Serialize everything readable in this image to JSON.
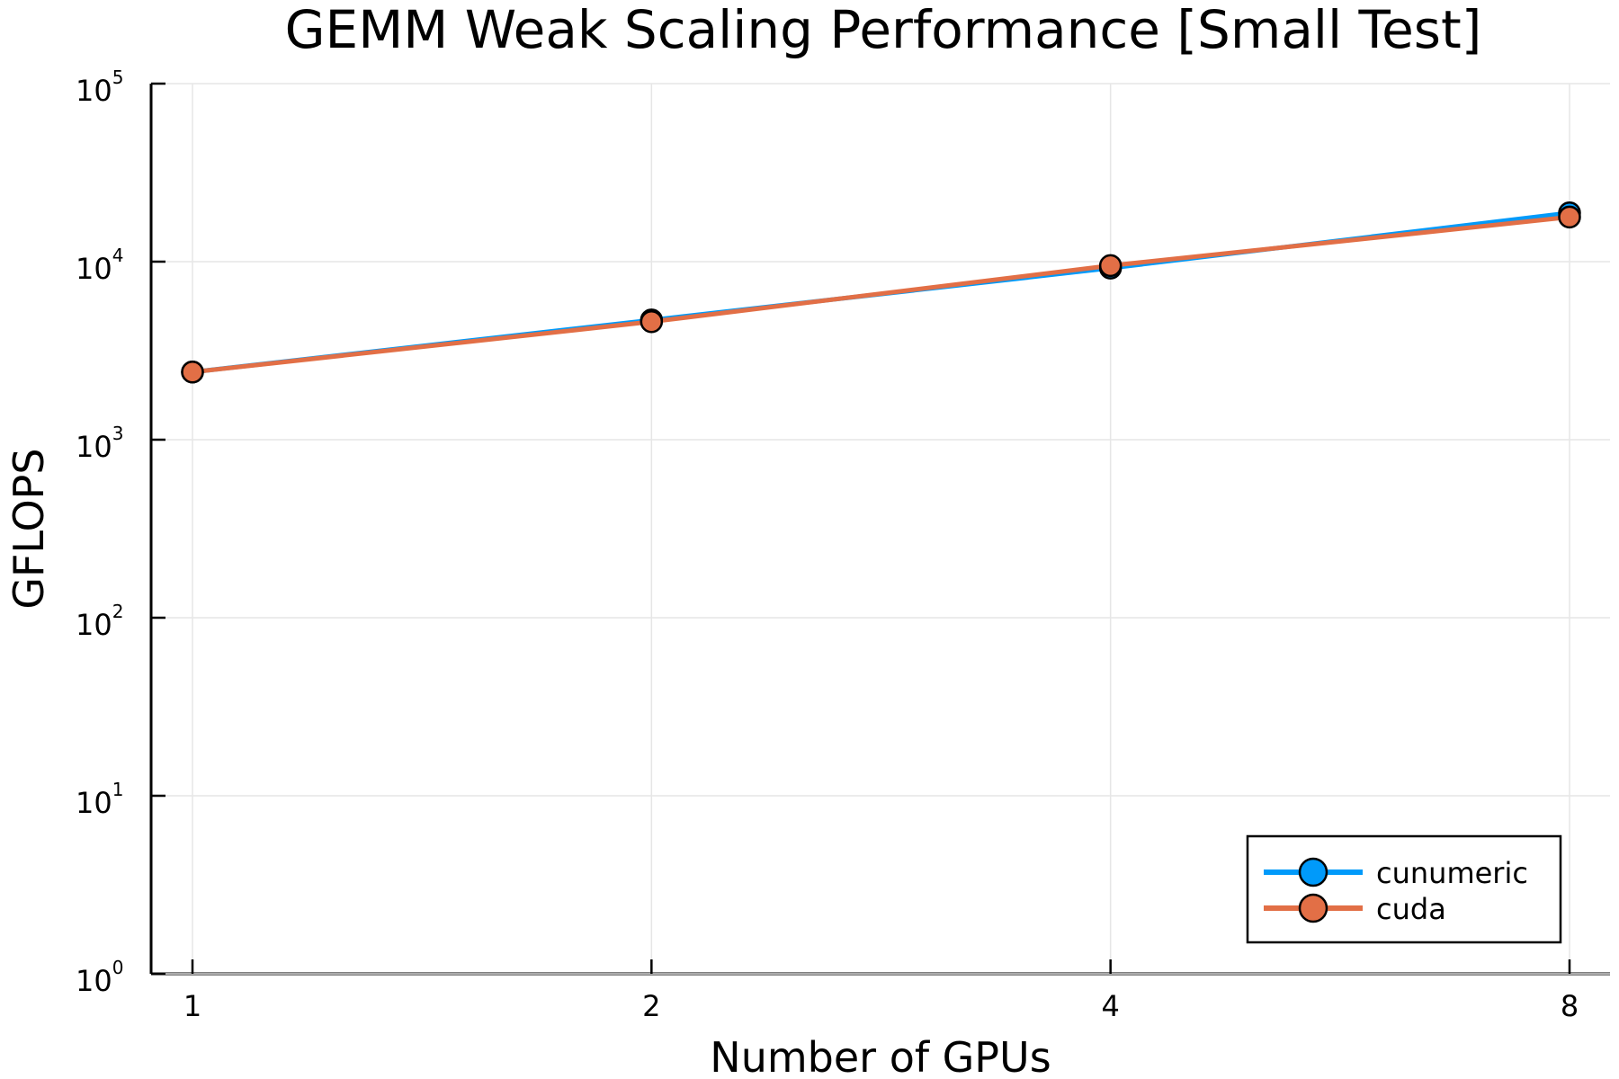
{
  "chart_data": {
    "type": "line",
    "title": "GEMM Weak Scaling Performance [Small Test]",
    "xlabel": "Number of GPUs",
    "ylabel": "GFLOPS",
    "x_scale": "log2",
    "y_scale": "log10",
    "x": [
      1,
      2,
      4,
      8
    ],
    "xticks": [
      "1",
      "2",
      "4",
      "8"
    ],
    "ylim": [
      1,
      100000
    ],
    "yticks": [
      {
        "base": "10",
        "exp": "0"
      },
      {
        "base": "10",
        "exp": "1"
      },
      {
        "base": "10",
        "exp": "2"
      },
      {
        "base": "10",
        "exp": "3"
      },
      {
        "base": "10",
        "exp": "4"
      },
      {
        "base": "10",
        "exp": "5"
      }
    ],
    "grid": true,
    "legend_position": "bottom-right",
    "series": [
      {
        "name": "cunumeric",
        "color": "#009AFA",
        "values": [
          2400,
          4700,
          9200,
          18800
        ]
      },
      {
        "name": "cuda",
        "color": "#E26F46",
        "values": [
          2400,
          4600,
          9500,
          17800
        ]
      }
    ]
  }
}
